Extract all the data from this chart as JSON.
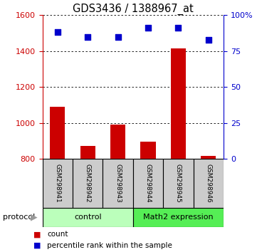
{
  "title": "GDS3436 / 1388967_at",
  "samples": [
    "GSM298941",
    "GSM298942",
    "GSM298943",
    "GSM298944",
    "GSM298945",
    "GSM298946"
  ],
  "count_values": [
    1090,
    870,
    990,
    895,
    1415,
    815
  ],
  "percentile_values": [
    88,
    85,
    85,
    91,
    91,
    83
  ],
  "ylim_left": [
    800,
    1600
  ],
  "ylim_right": [
    0,
    100
  ],
  "yticks_left": [
    800,
    1000,
    1200,
    1400,
    1600
  ],
  "yticks_right": [
    0,
    25,
    50,
    75,
    100
  ],
  "ytick_labels_right": [
    "0",
    "25",
    "50",
    "75",
    "100%"
  ],
  "bar_color": "#cc0000",
  "dot_color": "#0000cc",
  "groups": [
    {
      "label": "control",
      "start": 0,
      "end": 3,
      "color": "#bbffbb"
    },
    {
      "label": "Math2 expression",
      "start": 3,
      "end": 6,
      "color": "#55ee55"
    }
  ],
  "protocol_label": "protocol",
  "legend_items": [
    {
      "color": "#cc0000",
      "label": "count"
    },
    {
      "color": "#0000cc",
      "label": "percentile rank within the sample"
    }
  ],
  "left_tick_color": "#cc0000",
  "right_tick_color": "#0000cc",
  "sample_box_color": "#cccccc",
  "sample_fontsize": 6.5,
  "group_fontsize": 8,
  "legend_fontsize": 7.5,
  "title_fontsize": 10.5
}
